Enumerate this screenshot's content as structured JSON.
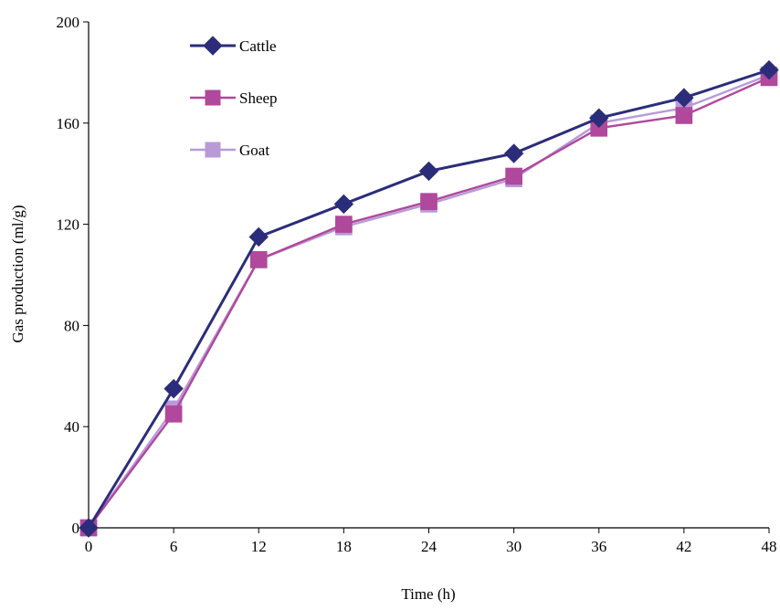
{
  "chart_data": {
    "type": "line",
    "xlabel": "Time (h)",
    "ylabel": "Gas production (ml/g)",
    "x": [
      0,
      6,
      12,
      18,
      24,
      30,
      36,
      42,
      48
    ],
    "xlim": [
      0,
      48
    ],
    "ylim": [
      0,
      200
    ],
    "xticks": [
      "0",
      "6",
      "12",
      "18",
      "24",
      "30",
      "36",
      "42",
      "48"
    ],
    "yticks": [
      "0",
      "40",
      "80",
      "120",
      "160",
      "200"
    ],
    "grid": false,
    "legend_position": "top-left",
    "series": [
      {
        "name": "Cattle",
        "color": "#2b2d7a",
        "marker": "diamond",
        "values": [
          0,
          55,
          115,
          128,
          141,
          148,
          162,
          170,
          181
        ]
      },
      {
        "name": "Sheep",
        "color": "#b0489c",
        "marker": "square",
        "values": [
          0,
          45,
          106,
          120,
          129,
          139,
          158,
          163,
          178
        ]
      },
      {
        "name": "Goat",
        "color": "#b89ad8",
        "marker": "square",
        "values": [
          0,
          47,
          106,
          119,
          128,
          138,
          160,
          166,
          179
        ]
      }
    ]
  }
}
